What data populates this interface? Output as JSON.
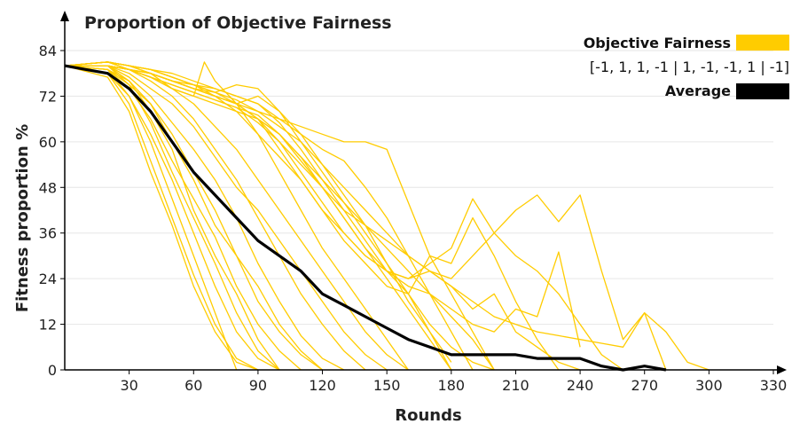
{
  "chart_data": {
    "type": "line",
    "title": "Proportion of Objective Fairness",
    "xlabel": "Rounds",
    "ylabel": "Fitness proportion %",
    "xlim": [
      0,
      330
    ],
    "ylim": [
      0,
      84
    ],
    "xticks": [
      30,
      60,
      90,
      120,
      150,
      180,
      210,
      240,
      270,
      300,
      330
    ],
    "yticks": [
      0,
      12,
      24,
      36,
      48,
      60,
      72,
      84
    ],
    "grid": true,
    "legend": {
      "placement": "top-right",
      "entries": [
        {
          "label": "Objective Fairness",
          "sublabel": "[-1, 1, 1, -1 | 1, -1, -1, 1 | -1]",
          "color": "#ffcc00"
        },
        {
          "label": "Average",
          "color": "#000000"
        }
      ]
    },
    "series": [
      {
        "name": "Average",
        "color": "#000000",
        "x": [
          0,
          10,
          20,
          30,
          40,
          50,
          60,
          70,
          80,
          90,
          100,
          110,
          120,
          130,
          140,
          150,
          160,
          170,
          180,
          190,
          200,
          210,
          220,
          230,
          240,
          250,
          260,
          270,
          280
        ],
        "y": [
          80,
          79,
          78,
          74,
          68,
          60,
          52,
          46,
          40,
          34,
          30,
          26,
          20,
          17,
          14,
          11,
          8,
          6,
          4,
          4,
          4,
          4,
          3,
          3,
          3,
          1,
          0,
          1,
          0
        ]
      },
      {
        "color": "#ffcc00",
        "x": [
          0,
          20,
          30,
          40,
          50,
          60,
          70,
          80,
          90
        ],
        "y": [
          80,
          78,
          70,
          55,
          40,
          25,
          12,
          3,
          0
        ]
      },
      {
        "color": "#ffcc00",
        "x": [
          0,
          20,
          30,
          40,
          50,
          60,
          70,
          80
        ],
        "y": [
          80,
          79,
          72,
          60,
          45,
          30,
          15,
          0
        ]
      },
      {
        "color": "#ffcc00",
        "x": [
          0,
          20,
          30,
          40,
          50,
          60,
          70,
          80,
          90,
          100
        ],
        "y": [
          80,
          80,
          75,
          65,
          52,
          40,
          28,
          15,
          5,
          0
        ]
      },
      {
        "color": "#ffcc00",
        "x": [
          0,
          20,
          30,
          40,
          50,
          60,
          70,
          80,
          90
        ],
        "y": [
          80,
          77,
          68,
          52,
          38,
          22,
          10,
          2,
          0
        ]
      },
      {
        "color": "#ffcc00",
        "x": [
          0,
          20,
          30,
          40,
          50,
          60,
          70,
          80,
          90,
          100,
          110
        ],
        "y": [
          80,
          79,
          74,
          66,
          55,
          45,
          35,
          22,
          12,
          5,
          0
        ]
      },
      {
        "color": "#ffcc00",
        "x": [
          0,
          20,
          30,
          40,
          50,
          60,
          70,
          80,
          90,
          100
        ],
        "y": [
          80,
          80,
          76,
          68,
          58,
          42,
          30,
          20,
          8,
          0
        ]
      },
      {
        "color": "#ffcc00",
        "x": [
          0,
          20,
          30,
          40,
          50,
          60,
          70,
          80,
          90,
          100,
          110,
          120
        ],
        "y": [
          80,
          79,
          75,
          70,
          62,
          52,
          42,
          30,
          18,
          10,
          4,
          0
        ]
      },
      {
        "color": "#ffcc00",
        "x": [
          0,
          20,
          30,
          40,
          50,
          60,
          70,
          80,
          90,
          100
        ],
        "y": [
          80,
          78,
          72,
          62,
          50,
          36,
          22,
          10,
          3,
          0
        ]
      },
      {
        "color": "#ffcc00",
        "x": [
          0,
          20,
          30,
          40,
          50,
          60,
          70,
          80,
          90,
          100,
          110,
          120,
          130
        ],
        "y": [
          80,
          80,
          77,
          72,
          65,
          58,
          50,
          40,
          28,
          18,
          9,
          3,
          0
        ]
      },
      {
        "color": "#ffcc00",
        "x": [
          0,
          20,
          30,
          40,
          50,
          60,
          70,
          80,
          90,
          100,
          110,
          120
        ],
        "y": [
          80,
          79,
          76,
          70,
          60,
          50,
          38,
          30,
          22,
          12,
          5,
          0
        ]
      },
      {
        "color": "#ffcc00",
        "x": [
          0,
          20,
          30,
          40,
          50,
          60,
          70,
          80,
          90,
          100,
          110,
          120,
          130,
          140
        ],
        "y": [
          80,
          81,
          79,
          76,
          72,
          66,
          58,
          50,
          40,
          30,
          20,
          12,
          5,
          0
        ]
      },
      {
        "color": "#ffcc00",
        "x": [
          0,
          20,
          30,
          40,
          50,
          60,
          70,
          80,
          90,
          100,
          110,
          120,
          130,
          140,
          150
        ],
        "y": [
          80,
          80,
          78,
          74,
          70,
          64,
          56,
          48,
          42,
          34,
          26,
          18,
          10,
          4,
          0
        ]
      },
      {
        "color": "#ffcc00",
        "x": [
          0,
          20,
          30,
          40,
          50,
          60,
          70,
          80,
          90,
          100,
          110,
          120,
          130,
          140,
          150,
          160
        ],
        "y": [
          80,
          81,
          80,
          78,
          74,
          70,
          64,
          58,
          50,
          42,
          34,
          26,
          18,
          10,
          4,
          0
        ]
      },
      {
        "color": "#ffcc00",
        "x": [
          0,
          20,
          30,
          40,
          50,
          60,
          65,
          70,
          80,
          90,
          100,
          110,
          120,
          130,
          140,
          150,
          160
        ],
        "y": [
          80,
          81,
          79,
          77,
          74,
          72,
          81,
          76,
          70,
          62,
          52,
          42,
          32,
          24,
          16,
          8,
          0
        ]
      },
      {
        "color": "#ffcc00",
        "x": [
          0,
          20,
          30,
          40,
          50,
          60,
          70,
          80,
          90,
          100,
          110,
          120,
          130,
          140,
          150,
          160,
          170,
          180
        ],
        "y": [
          80,
          80,
          79,
          77,
          74,
          72,
          70,
          68,
          66,
          62,
          55,
          48,
          40,
          32,
          24,
          16,
          8,
          0
        ]
      },
      {
        "color": "#ffcc00",
        "x": [
          0,
          20,
          30,
          40,
          50,
          60,
          70,
          80,
          90,
          100,
          110,
          120,
          130,
          140,
          150,
          160,
          170,
          180
        ],
        "y": [
          80,
          81,
          80,
          79,
          77,
          75,
          72,
          70,
          72,
          68,
          62,
          54,
          46,
          38,
          28,
          18,
          10,
          0
        ]
      },
      {
        "color": "#ffcc00",
        "x": [
          0,
          20,
          30,
          40,
          50,
          60,
          70,
          80,
          90,
          100,
          110,
          120,
          130,
          140,
          150,
          160,
          170,
          180
        ],
        "y": [
          80,
          80,
          79,
          78,
          76,
          74,
          73,
          75,
          74,
          68,
          60,
          52,
          44,
          36,
          28,
          20,
          10,
          2
        ]
      },
      {
        "color": "#ffcc00",
        "x": [
          0,
          20,
          30,
          40,
          50,
          60,
          70,
          80,
          90,
          100,
          110,
          120,
          130,
          140,
          150,
          160,
          170,
          180,
          190
        ],
        "y": [
          80,
          81,
          80,
          79,
          78,
          76,
          74,
          72,
          70,
          66,
          62,
          58,
          55,
          48,
          40,
          30,
          20,
          10,
          0
        ]
      },
      {
        "color": "#ffcc00",
        "x": [
          0,
          20,
          30,
          40,
          50,
          60,
          70,
          80,
          90,
          100,
          110,
          120,
          130,
          140,
          150,
          160,
          170,
          180,
          190,
          200
        ],
        "y": [
          80,
          80,
          79,
          78,
          76,
          74,
          72,
          70,
          68,
          66,
          64,
          62,
          60,
          60,
          58,
          44,
          30,
          20,
          10,
          0
        ]
      },
      {
        "color": "#ffcc00",
        "x": [
          0,
          20,
          30,
          40,
          50,
          60,
          70,
          80,
          90,
          100,
          110,
          120,
          130,
          140,
          150,
          160,
          170,
          180,
          190,
          200
        ],
        "y": [
          80,
          81,
          80,
          78,
          76,
          75,
          74,
          72,
          70,
          65,
          58,
          50,
          42,
          34,
          26,
          20,
          12,
          6,
          2,
          0
        ]
      },
      {
        "color": "#ffcc00",
        "x": [
          0,
          20,
          30,
          40,
          50,
          60,
          70,
          80,
          90,
          100,
          110,
          120,
          130,
          140,
          150,
          160,
          170,
          180,
          190,
          200
        ],
        "y": [
          80,
          80,
          79,
          77,
          75,
          73,
          71,
          69,
          67,
          62,
          56,
          48,
          40,
          32,
          26,
          22,
          20,
          14,
          8,
          0
        ]
      },
      {
        "color": "#ffcc00",
        "x": [
          0,
          20,
          30,
          40,
          50,
          60,
          70,
          80,
          90,
          100,
          110,
          120,
          130,
          140,
          150,
          160,
          170,
          180,
          190,
          200,
          210,
          220,
          230,
          240
        ],
        "y": [
          80,
          81,
          80,
          79,
          77,
          75,
          73,
          70,
          66,
          60,
          52,
          44,
          36,
          30,
          26,
          24,
          26,
          22,
          16,
          20,
          10,
          6,
          2,
          0
        ]
      },
      {
        "color": "#ffcc00",
        "x": [
          0,
          20,
          30,
          40,
          50,
          60,
          70,
          80,
          90,
          100,
          110,
          120,
          130,
          140,
          150,
          160,
          170,
          180,
          190,
          200,
          210,
          220,
          230
        ],
        "y": [
          80,
          80,
          79,
          78,
          76,
          74,
          72,
          70,
          66,
          58,
          50,
          42,
          34,
          28,
          22,
          20,
          30,
          28,
          40,
          30,
          18,
          8,
          0
        ]
      },
      {
        "color": "#ffcc00",
        "x": [
          0,
          20,
          30,
          40,
          50,
          60,
          70,
          80,
          90,
          100,
          110,
          120,
          130,
          140,
          150,
          160,
          170,
          180,
          190,
          200,
          210,
          220,
          230,
          240,
          250,
          260
        ],
        "y": [
          80,
          81,
          80,
          78,
          76,
          74,
          72,
          68,
          62,
          56,
          50,
          42,
          36,
          30,
          26,
          24,
          28,
          32,
          45,
          36,
          30,
          26,
          20,
          12,
          4,
          0
        ]
      },
      {
        "color": "#ffcc00",
        "x": [
          0,
          20,
          30,
          40,
          50,
          60,
          70,
          80,
          90,
          100,
          110,
          120,
          130,
          140,
          150,
          160,
          170,
          180,
          190,
          200,
          210,
          220,
          230,
          240,
          250,
          260,
          270,
          280
        ],
        "y": [
          80,
          80,
          79,
          77,
          75,
          73,
          71,
          69,
          65,
          60,
          54,
          48,
          42,
          38,
          34,
          30,
          26,
          24,
          30,
          36,
          42,
          46,
          39,
          46,
          26,
          8,
          15,
          0
        ]
      },
      {
        "color": "#ffcc00",
        "x": [
          0,
          20,
          30,
          40,
          50,
          60,
          70,
          80,
          90,
          100,
          110,
          120,
          130,
          140,
          150,
          160,
          170,
          180,
          190,
          200,
          210,
          220,
          230,
          240,
          250,
          260,
          270,
          280,
          290,
          300
        ],
        "y": [
          80,
          81,
          80,
          79,
          77,
          75,
          73,
          71,
          68,
          64,
          60,
          54,
          48,
          42,
          36,
          30,
          26,
          22,
          18,
          14,
          12,
          10,
          9,
          8,
          7,
          6,
          15,
          10,
          2,
          0
        ]
      },
      {
        "color": "#ffcc00",
        "x": [
          0,
          20,
          30,
          40,
          50,
          60,
          70,
          80,
          90,
          100,
          110,
          120,
          130,
          140,
          150,
          160,
          170,
          180,
          190,
          200,
          210,
          220,
          230,
          240
        ],
        "y": [
          80,
          80,
          79,
          78,
          76,
          74,
          72,
          70,
          66,
          62,
          56,
          50,
          44,
          38,
          32,
          26,
          20,
          16,
          12,
          10,
          16,
          14,
          31,
          6
        ]
      }
    ]
  }
}
